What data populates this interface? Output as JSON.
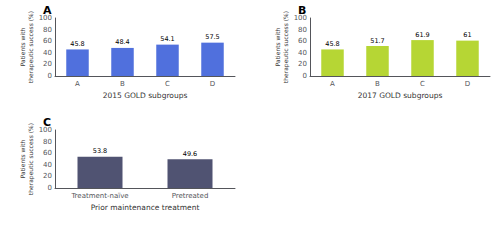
{
  "chart_data": [
    {
      "type": "bar",
      "title": "A",
      "categories": [
        "A",
        "B",
        "C",
        "D"
      ],
      "values": [
        45.8,
        48.4,
        54.1,
        57.5
      ],
      "xlabel": "2015 GOLD subgroups",
      "ylabel": "Patients with\ntherapeutic success (%)",
      "ylim": [
        0,
        100
      ],
      "yticks": [
        0,
        20,
        40,
        60,
        80,
        100
      ],
      "data_labels": true,
      "grid": false
    },
    {
      "type": "bar",
      "title": "B",
      "categories": [
        "A",
        "B",
        "C",
        "D"
      ],
      "values": [
        45.8,
        51.7,
        61.9,
        61.0
      ],
      "xlabel": "2017 GOLD subgroups",
      "ylabel": "Patients with\ntherapeutic success (%)",
      "ylim": [
        0,
        100
      ],
      "yticks": [
        0,
        20,
        40,
        60,
        80,
        100
      ],
      "data_labels": true,
      "grid": false
    },
    {
      "type": "bar",
      "title": "C",
      "categories": [
        "Treatment-naïve",
        "Pretreated"
      ],
      "values": [
        53.8,
        49.6
      ],
      "xlabel": "Prior maintenance treatment",
      "ylabel": "Patients with\ntherapeutic success (%)",
      "ylim": [
        0,
        100
      ],
      "yticks": [
        0,
        20,
        40,
        60,
        80,
        100
      ],
      "data_labels": true,
      "grid": false
    }
  ]
}
